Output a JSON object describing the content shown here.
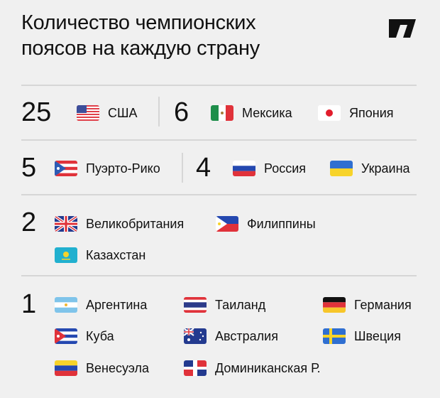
{
  "title": {
    "line1": "Количество чемпионских",
    "line2": "поясов на каждую страну"
  },
  "logo": "logo",
  "groups": [
    {
      "count": "25",
      "countries": [
        {
          "name": "США",
          "flag": "us-flag"
        }
      ]
    },
    {
      "count": "6",
      "countries": [
        {
          "name": "Мексика",
          "flag": "mexico-flag"
        },
        {
          "name": "Япония",
          "flag": "japan-flag"
        }
      ]
    },
    {
      "count": "5",
      "countries": [
        {
          "name": "Пуэрто-Рико",
          "flag": "puerto-rico-flag"
        }
      ]
    },
    {
      "count": "4",
      "countries": [
        {
          "name": "Россия",
          "flag": "russia-flag"
        },
        {
          "name": "Украина",
          "flag": "ukraine-flag"
        }
      ]
    },
    {
      "count": "2",
      "countries": [
        {
          "name": "Великобритания",
          "flag": "uk-flag"
        },
        {
          "name": "Филиппины",
          "flag": "philippines-flag"
        },
        {
          "name": "Казахстан",
          "flag": "kazakhstan-flag"
        }
      ]
    },
    {
      "count": "1",
      "countries": [
        {
          "name": "Аргентина",
          "flag": "argentina-flag"
        },
        {
          "name": "Таиланд",
          "flag": "thailand-flag"
        },
        {
          "name": "Германия",
          "flag": "germany-flag"
        },
        {
          "name": "Куба",
          "flag": "cuba-flag"
        },
        {
          "name": "Австралия",
          "flag": "australia-flag"
        },
        {
          "name": "Швеция",
          "flag": "sweden-flag"
        },
        {
          "name": "Венесуэла",
          "flag": "venezuela-flag"
        },
        {
          "name": "Доминиканская Р.",
          "flag": "dominican-republic-flag"
        }
      ]
    }
  ]
}
